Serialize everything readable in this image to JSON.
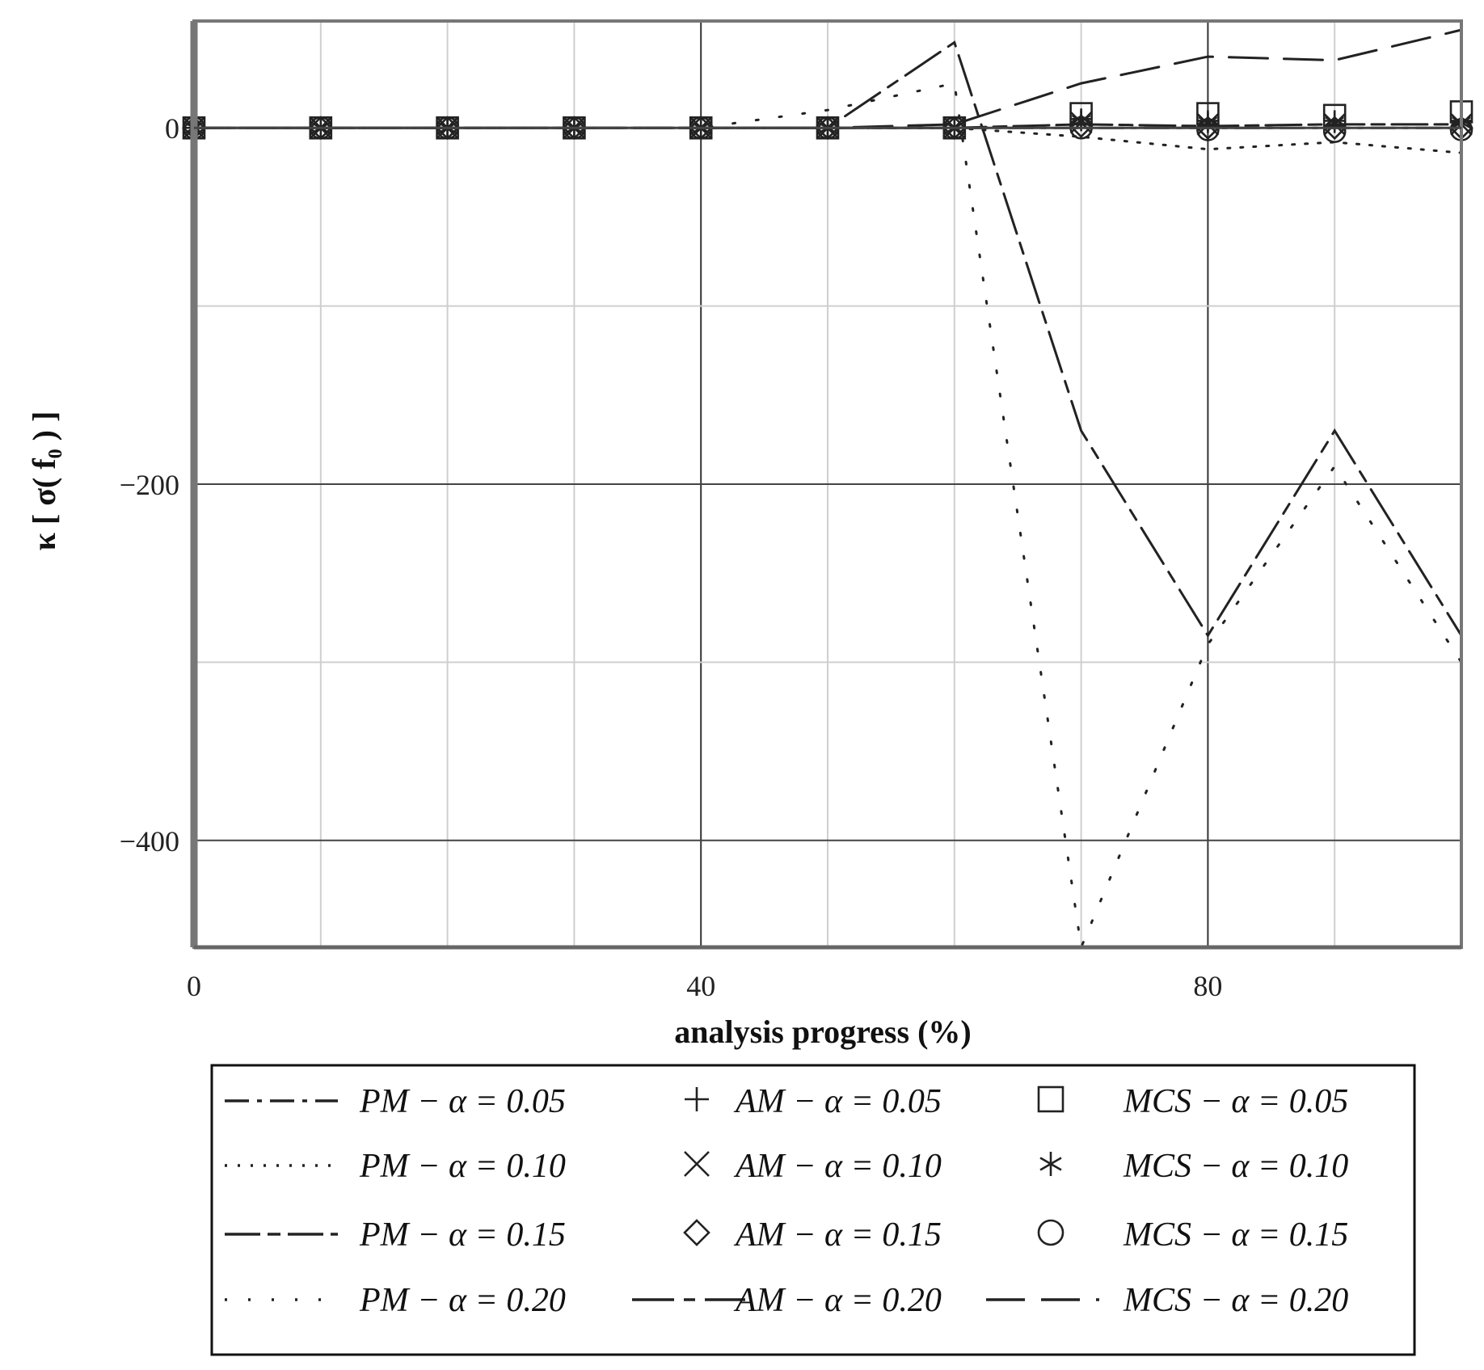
{
  "chart_data": {
    "type": "line",
    "xlabel": "analysis progress (%)",
    "ylabel": "κ [ σ( f₀ ) ]",
    "xlim": [
      0,
      100
    ],
    "ylim": [
      -460,
      60
    ],
    "x_ticks": [
      0,
      40,
      80
    ],
    "y_ticks": [
      0,
      -200,
      -400
    ],
    "grid": true,
    "legend_position": "bottom",
    "x": [
      0,
      10,
      20,
      30,
      40,
      50,
      60,
      70,
      80,
      90,
      100
    ],
    "series": [
      {
        "name": "PM − α = 0.05",
        "style": "dash-dot",
        "marker": "none",
        "values": [
          0,
          0,
          0,
          0,
          0,
          0,
          0,
          0,
          0,
          0,
          0
        ]
      },
      {
        "name": "PM − α = 0.10",
        "style": "dotted",
        "marker": "none",
        "values": [
          0,
          0,
          0,
          0,
          0,
          0,
          0,
          -5,
          -12,
          -8,
          -14
        ]
      },
      {
        "name": "PM − α = 0.15",
        "style": "solid-dash",
        "marker": "none",
        "values": [
          0,
          0,
          0,
          0,
          0,
          0,
          0,
          2,
          1,
          2,
          2
        ]
      },
      {
        "name": "PM − α = 0.20",
        "style": "sparse-dots",
        "marker": "none",
        "values": [
          0,
          0,
          0,
          0,
          0,
          10,
          25,
          -460,
          -290,
          -190,
          -300
        ]
      },
      {
        "name": "AM − α = 0.05",
        "style": "none",
        "marker": "plus",
        "values": [
          0,
          0,
          0,
          0,
          0,
          0,
          0,
          5,
          4,
          4,
          4
        ]
      },
      {
        "name": "AM − α = 0.10",
        "style": "none",
        "marker": "x",
        "values": [
          0,
          0,
          0,
          0,
          0,
          0,
          0,
          3,
          2,
          2,
          2
        ]
      },
      {
        "name": "AM − α = 0.15",
        "style": "none",
        "marker": "diamond",
        "values": [
          0,
          0,
          0,
          0,
          0,
          0,
          0,
          1,
          0,
          0,
          0
        ]
      },
      {
        "name": "AM − α = 0.20",
        "style": "long-dash-short",
        "marker": "none",
        "values": [
          0,
          0,
          0,
          0,
          0,
          0,
          48,
          -170,
          -285,
          -170,
          -285
        ]
      },
      {
        "name": "MCS − α = 0.05",
        "style": "none",
        "marker": "square",
        "values": [
          0,
          0,
          0,
          0,
          0,
          0,
          0,
          8,
          8,
          7,
          9
        ]
      },
      {
        "name": "MCS − α = 0.10",
        "style": "none",
        "marker": "star",
        "values": [
          0,
          0,
          0,
          0,
          0,
          0,
          0,
          4,
          3,
          3,
          3
        ]
      },
      {
        "name": "MCS − α = 0.15",
        "style": "none",
        "marker": "circle",
        "values": [
          0,
          0,
          0,
          0,
          0,
          0,
          0,
          0,
          -1,
          -2,
          -1
        ]
      },
      {
        "name": "MCS − α = 0.20",
        "style": "long-dash",
        "marker": "none",
        "values": [
          0,
          0,
          0,
          0,
          0,
          0,
          2,
          25,
          40,
          38,
          55
        ]
      }
    ]
  },
  "legend": {
    "rows": [
      [
        {
          "text": "PM − α = 0.05",
          "sample": "dash-dot"
        },
        {
          "text": "AM − α = 0.05",
          "sample": "plus"
        },
        {
          "text": "MCS − α = 0.05",
          "sample": "square"
        }
      ],
      [
        {
          "text": "PM − α = 0.10",
          "sample": "dotted"
        },
        {
          "text": "AM − α = 0.10",
          "sample": "x"
        },
        {
          "text": "MCS − α = 0.10",
          "sample": "star"
        }
      ],
      [
        {
          "text": "PM − α = 0.15",
          "sample": "solid-dash"
        },
        {
          "text": "AM − α = 0.15",
          "sample": "diamond"
        },
        {
          "text": "MCS − α = 0.15",
          "sample": "circle"
        }
      ],
      [
        {
          "text": "PM − α = 0.20",
          "sample": "sparse-dots"
        },
        {
          "text": "AM − α = 0.20",
          "sample": "long-dash-short"
        },
        {
          "text": "MCS − α = 0.20",
          "sample": "long-dash"
        }
      ]
    ]
  }
}
